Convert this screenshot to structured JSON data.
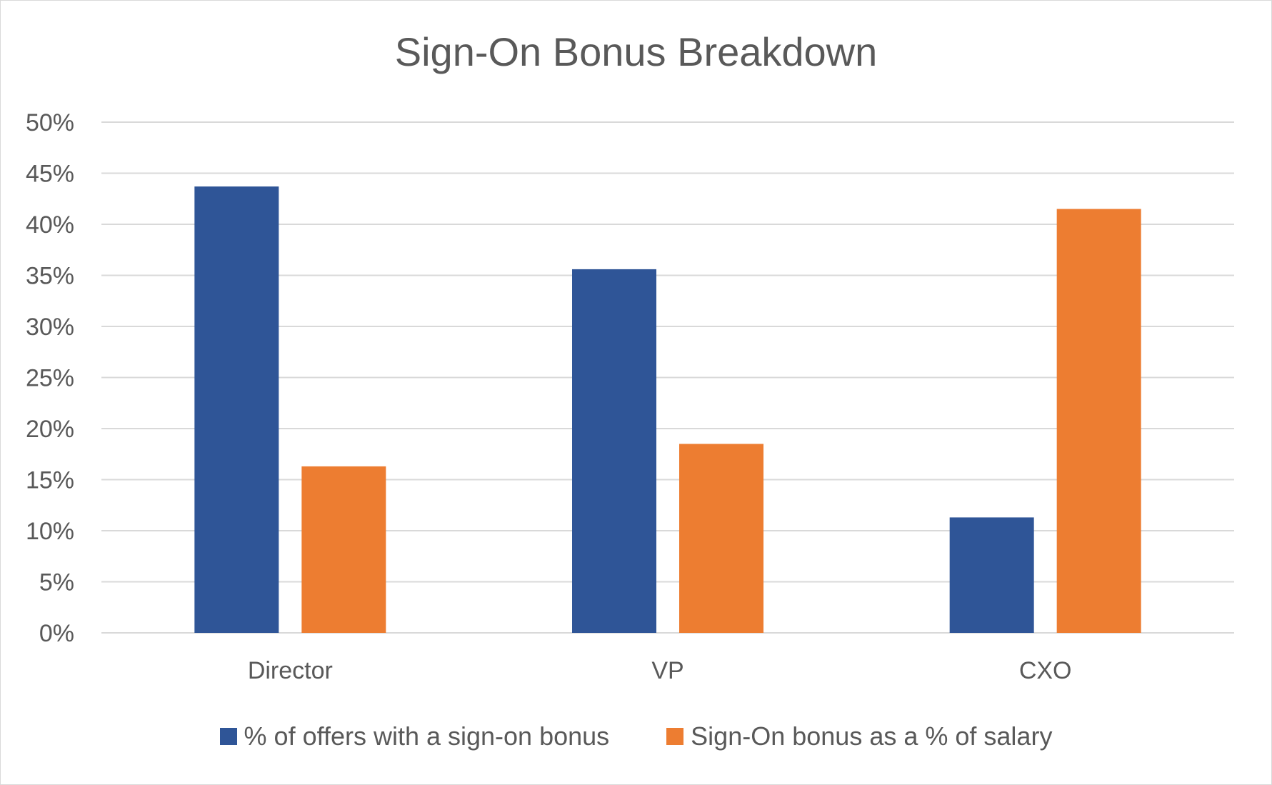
{
  "chart_data": {
    "type": "bar",
    "title": "Sign-On Bonus Breakdown",
    "categories": [
      "Director",
      "VP",
      "CXO"
    ],
    "series": [
      {
        "name": "% of offers with a sign-on bonus",
        "values": [
          43.7,
          35.6,
          11.3
        ],
        "color": "#2f5597"
      },
      {
        "name": "Sign-On bonus as a % of salary",
        "values": [
          16.3,
          18.5,
          41.5
        ],
        "color": "#ed7d31"
      }
    ],
    "ylim": [
      0,
      50
    ],
    "y_ticks": [
      0,
      5,
      10,
      15,
      20,
      25,
      30,
      35,
      40,
      45,
      50
    ],
    "y_tick_labels": [
      "0%",
      "5%",
      "10%",
      "15%",
      "20%",
      "25%",
      "30%",
      "35%",
      "40%",
      "45%",
      "50%"
    ],
    "xlabel": "",
    "ylabel": "",
    "grid": true,
    "legend_position": "bottom",
    "colors": {
      "gridline": "#d9d9d9",
      "axis_text": "#595959"
    }
  }
}
